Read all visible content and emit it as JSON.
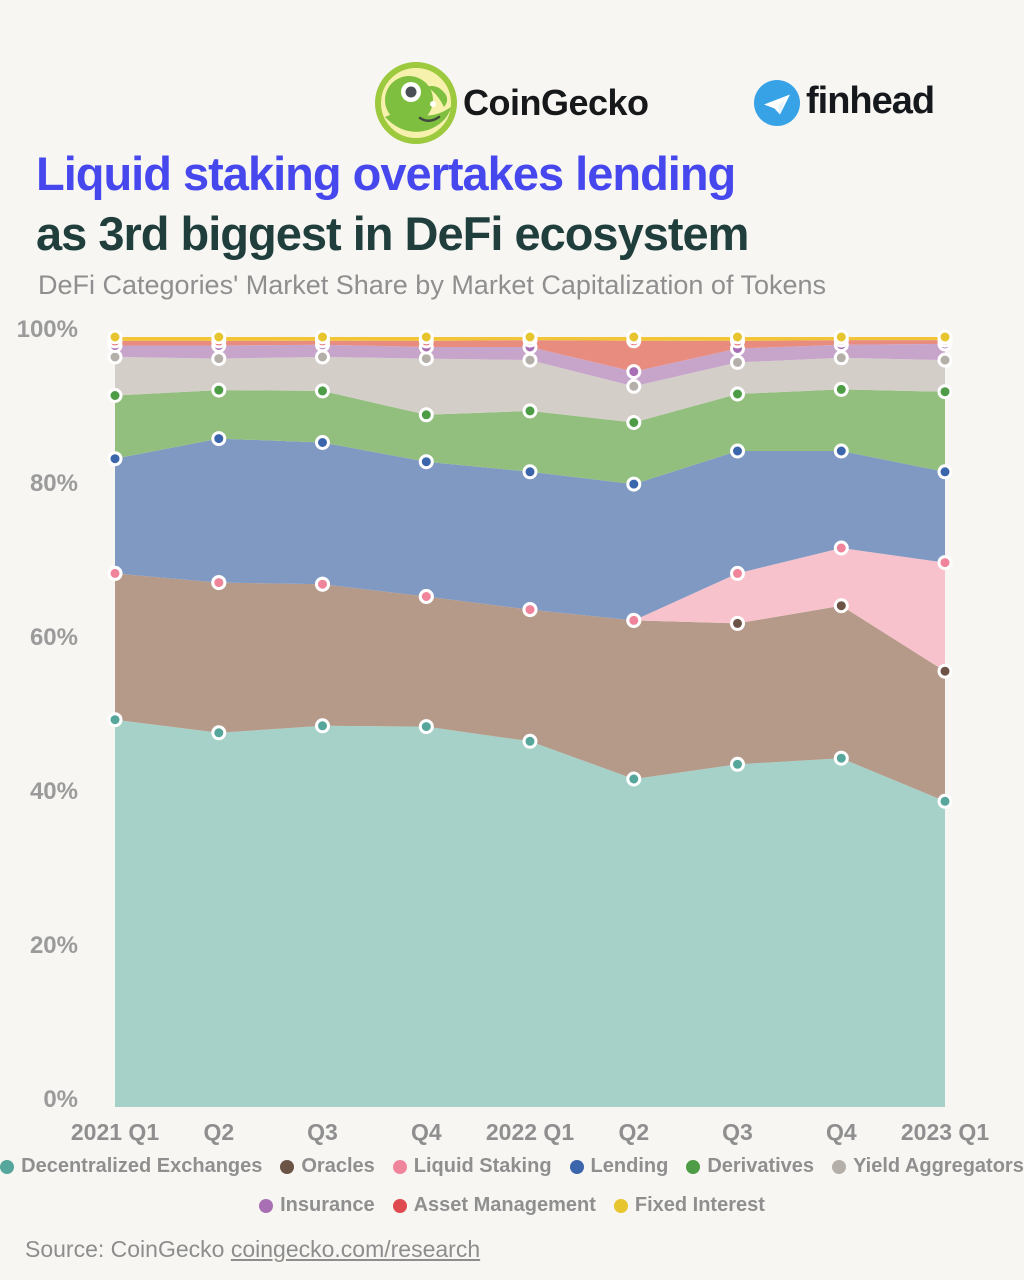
{
  "header": {
    "coingecko_label": "CoinGecko",
    "finhead_label": "finhead"
  },
  "title": {
    "line1": "Liquid staking overtakes lending",
    "line2": "as 3rd biggest in DeFi ecosystem",
    "subtitle": "DeFi Categories' Market Share by Market Capitalization of Tokens"
  },
  "source": {
    "prefix": "Source: CoinGecko ",
    "link": "coingecko.com/research"
  },
  "chart_data": {
    "type": "area",
    "stacked": true,
    "normalized_to_percent": true,
    "x_labels": [
      "2021 Q1",
      "Q2",
      "Q3",
      "Q4",
      "2022 Q1",
      "Q2",
      "Q3",
      "Q4",
      "2023 Q1"
    ],
    "y_ticks": [
      {
        "label": "0%",
        "value": 0
      },
      {
        "label": "20%",
        "value": 20
      },
      {
        "label": "40%",
        "value": 40
      },
      {
        "label": "60%",
        "value": 60
      },
      {
        "label": "80%",
        "value": 80
      },
      {
        "label": "100%",
        "value": 100
      }
    ],
    "ylim": [
      0,
      100
    ],
    "grid": false,
    "legend_position": "bottom",
    "legend_rows": [
      [
        "Decentralized Exchanges",
        "Oracles",
        "Liquid Staking",
        "Lending",
        "Derivatives",
        "Yield Aggregators"
      ],
      [
        "Insurance",
        "Asset Management",
        "Fixed Interest"
      ]
    ],
    "series": [
      {
        "name": "Decentralized Exchanges",
        "fill": "#a6d1c8",
        "dot": "#56a69c",
        "values": [
          50.3,
          48.6,
          49.5,
          49.4,
          47.5,
          42.6,
          44.5,
          45.3,
          39.7
        ]
      },
      {
        "name": "Oracles",
        "fill": "#b59a8a",
        "dot": "#6b5346",
        "values": [
          19.0,
          19.5,
          18.4,
          16.9,
          17.1,
          20.6,
          18.3,
          19.8,
          16.9
        ]
      },
      {
        "name": "Liquid Staking",
        "fill": "#f7c2cc",
        "dot": "#f0849b",
        "values": [
          0,
          0,
          0,
          0,
          0,
          0,
          6.5,
          7.5,
          14.1
        ]
      },
      {
        "name": "Lending",
        "fill": "#8099c3",
        "dot": "#3c66ab",
        "values": [
          14.9,
          18.7,
          18.4,
          17.5,
          17.9,
          17.7,
          15.9,
          12.6,
          11.8
        ]
      },
      {
        "name": "Derivatives",
        "fill": "#92bf7e",
        "dot": "#4f9c47",
        "values": [
          8.2,
          6.3,
          6.7,
          6.1,
          7.9,
          8.0,
          7.4,
          8.0,
          10.4
        ]
      },
      {
        "name": "Yield Aggregators",
        "fill": "#d4cec9",
        "dot": "#b5afaa",
        "values": [
          5.0,
          4.1,
          4.4,
          7.3,
          6.6,
          4.7,
          4.1,
          4.1,
          4.1
        ]
      },
      {
        "name": "Insurance",
        "fill": "#c7a5cb",
        "dot": "#a86fb4",
        "values": [
          1.5,
          1.7,
          1.6,
          1.5,
          1.7,
          1.9,
          1.8,
          1.7,
          2.1
        ]
      },
      {
        "name": "Asset Management",
        "fill": "#e88c80",
        "dot": "#df4a50",
        "values": [
          0.6,
          0.6,
          0.5,
          0.8,
          0.9,
          4.0,
          1.0,
          0.6,
          0.5
        ]
      },
      {
        "name": "Fixed Interest",
        "fill": "#f2c437",
        "dot": "#e6c52e",
        "values": [
          0.5,
          0.5,
          0.5,
          0.5,
          0.4,
          0.5,
          0.5,
          0.4,
          0.4
        ]
      }
    ]
  }
}
